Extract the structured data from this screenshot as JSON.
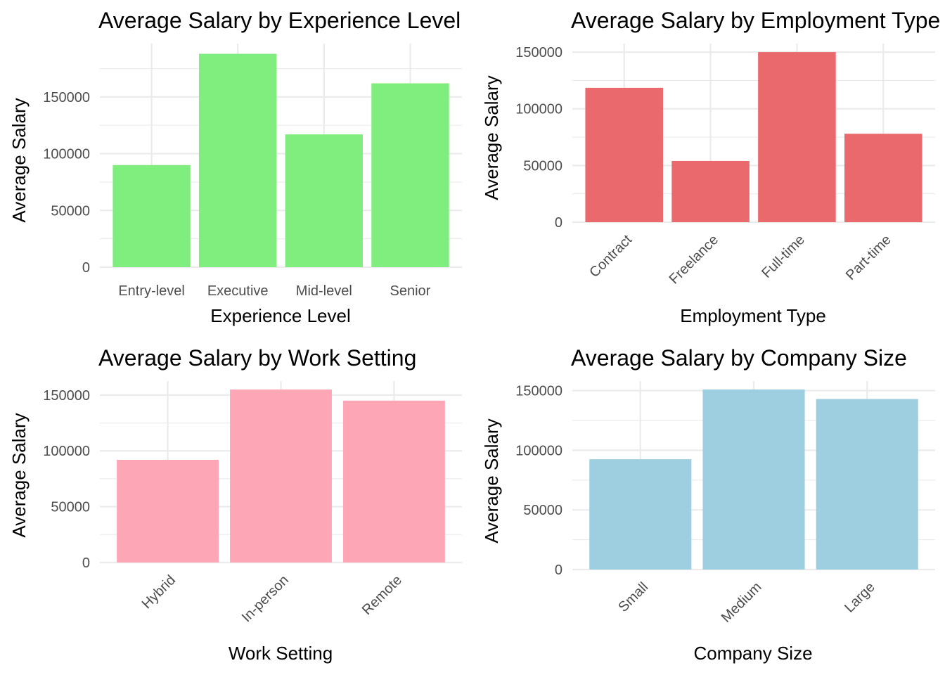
{
  "chart_data": [
    {
      "type": "bar",
      "title": "Average Salary by Experience Level",
      "xlabel": "Experience Level",
      "ylabel": "Average Salary",
      "categories": [
        "Entry-level",
        "Executive",
        "Mid-level",
        "Senior"
      ],
      "values": [
        90000,
        188000,
        117000,
        162000
      ],
      "yticks": [
        0,
        50000,
        100000,
        150000
      ],
      "yticklabels": [
        "0",
        "50000",
        "100000",
        "150000"
      ],
      "ylim": [
        0,
        197000
      ],
      "color": "#80ee7e",
      "tick_rotation": "none",
      "grid": true
    },
    {
      "type": "bar",
      "title": "Average Salary by Employment Type",
      "xlabel": "Employment Type",
      "ylabel": "Average Salary",
      "categories": [
        "Contract",
        "Freelance",
        "Full-time",
        "Part-time"
      ],
      "values": [
        118500,
        54000,
        150000,
        78000
      ],
      "yticks": [
        0,
        50000,
        100000,
        150000
      ],
      "yticklabels": [
        "0",
        "50000",
        "100000",
        "150000"
      ],
      "ylim": [
        0,
        157500
      ],
      "color": "#ea696d",
      "tick_rotation": "45",
      "grid": true
    },
    {
      "type": "bar",
      "title": "Average Salary by Work Setting",
      "xlabel": "Work Setting",
      "ylabel": "Average Salary",
      "categories": [
        "Hybrid",
        "In-person",
        "Remote"
      ],
      "values": [
        92000,
        155000,
        145000
      ],
      "yticks": [
        0,
        50000,
        100000,
        150000
      ],
      "yticklabels": [
        "0",
        "50000",
        "100000",
        "150000"
      ],
      "ylim": [
        0,
        162500
      ],
      "color": "#fda6b6",
      "tick_rotation": "45",
      "grid": true
    },
    {
      "type": "bar",
      "title": "Average Salary by Company Size",
      "xlabel": "Company Size",
      "ylabel": "Average Salary",
      "categories": [
        "Small",
        "Medium",
        "Large"
      ],
      "values": [
        92500,
        151000,
        143000
      ],
      "yticks": [
        0,
        50000,
        100000,
        150000
      ],
      "yticklabels": [
        "0",
        "50000",
        "100000",
        "150000"
      ],
      "ylim": [
        0,
        158000
      ],
      "color": "#9ecfe0",
      "tick_rotation": "45",
      "grid": true
    }
  ]
}
